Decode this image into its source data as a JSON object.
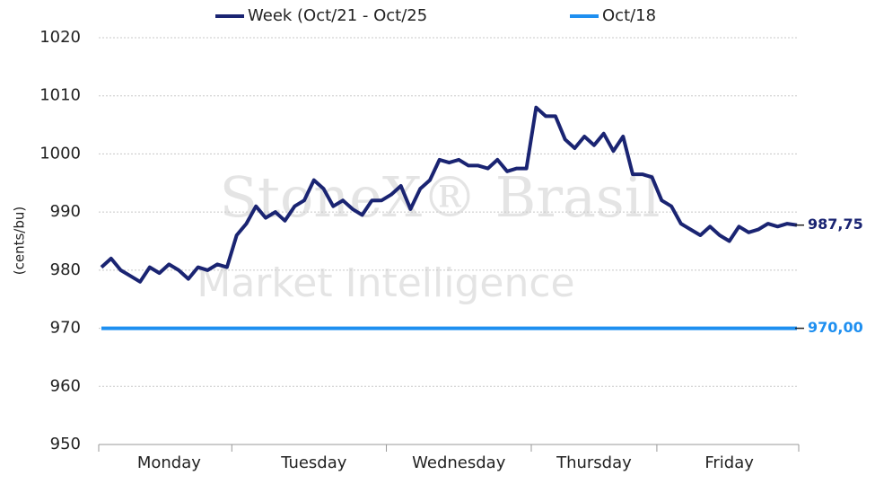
{
  "chart_data": {
    "type": "line",
    "y_label": "(cents/bu)",
    "watermark": [
      "StoneX® Brasil",
      "Market Intelligence"
    ],
    "categories": [
      null,
      null,
      null,
      null,
      null,
      null,
      null,
      "Monday",
      null,
      null,
      null,
      null,
      null,
      null,
      null,
      null,
      null,
      null,
      null,
      null,
      null,
      null,
      "Tuesday",
      null,
      null,
      null,
      null,
      null,
      null,
      null,
      null,
      null,
      null,
      null,
      null,
      null,
      null,
      "Wednesday",
      null,
      null,
      null,
      null,
      null,
      null,
      null,
      null,
      null,
      null,
      null,
      null,
      null,
      "Thursday",
      null,
      null,
      null,
      null,
      null,
      null,
      null,
      null,
      null,
      null,
      null,
      null,
      null,
      "Friday",
      null,
      null,
      null,
      null,
      null,
      null,
      null
    ],
    "series": [
      {
        "name": "Week (Oct/21 - Oct/25",
        "color": "#1a2472",
        "end_label": "987,75",
        "values": [
          980.5,
          982,
          980,
          979,
          978,
          980.5,
          979.5,
          981,
          980,
          978.5,
          980.5,
          980,
          981,
          980.5,
          986,
          988,
          991,
          989,
          990,
          988.5,
          991,
          992,
          995.5,
          994,
          991,
          992,
          990.5,
          989.5,
          992,
          992,
          993,
          994.5,
          990.5,
          994,
          995.5,
          999,
          998.5,
          999,
          998,
          998,
          997.5,
          999,
          997,
          997.5,
          997.5,
          1008,
          1006.5,
          1006.5,
          1002.5,
          1001,
          1003,
          1001.5,
          1003.5,
          1000.5,
          1003,
          996.5,
          996.5,
          996,
          992,
          991,
          988,
          987,
          986,
          987.5,
          986,
          985,
          987.5,
          986.5,
          987,
          988,
          987.5,
          988,
          987.75
        ]
      },
      {
        "name": "Oct/18",
        "color": "#1e8ff0",
        "end_label": "970,00",
        "values": [
          970,
          970,
          970,
          970,
          970,
          970,
          970,
          970,
          970,
          970,
          970,
          970,
          970,
          970,
          970,
          970,
          970,
          970,
          970,
          970,
          970,
          970,
          970,
          970,
          970,
          970,
          970,
          970,
          970,
          970,
          970,
          970,
          970,
          970,
          970,
          970,
          970,
          970,
          970,
          970,
          970,
          970,
          970,
          970,
          970,
          970,
          970,
          970,
          970,
          970,
          970,
          970,
          970,
          970,
          970,
          970,
          970,
          970,
          970,
          970,
          970,
          970,
          970,
          970,
          970,
          970,
          970,
          970,
          970,
          970,
          970,
          970,
          970
        ]
      }
    ],
    "ylim": [
      950,
      1020
    ],
    "yticks": [
      950,
      960,
      970,
      980,
      990,
      1000,
      1010,
      1020
    ],
    "grid": true
  }
}
